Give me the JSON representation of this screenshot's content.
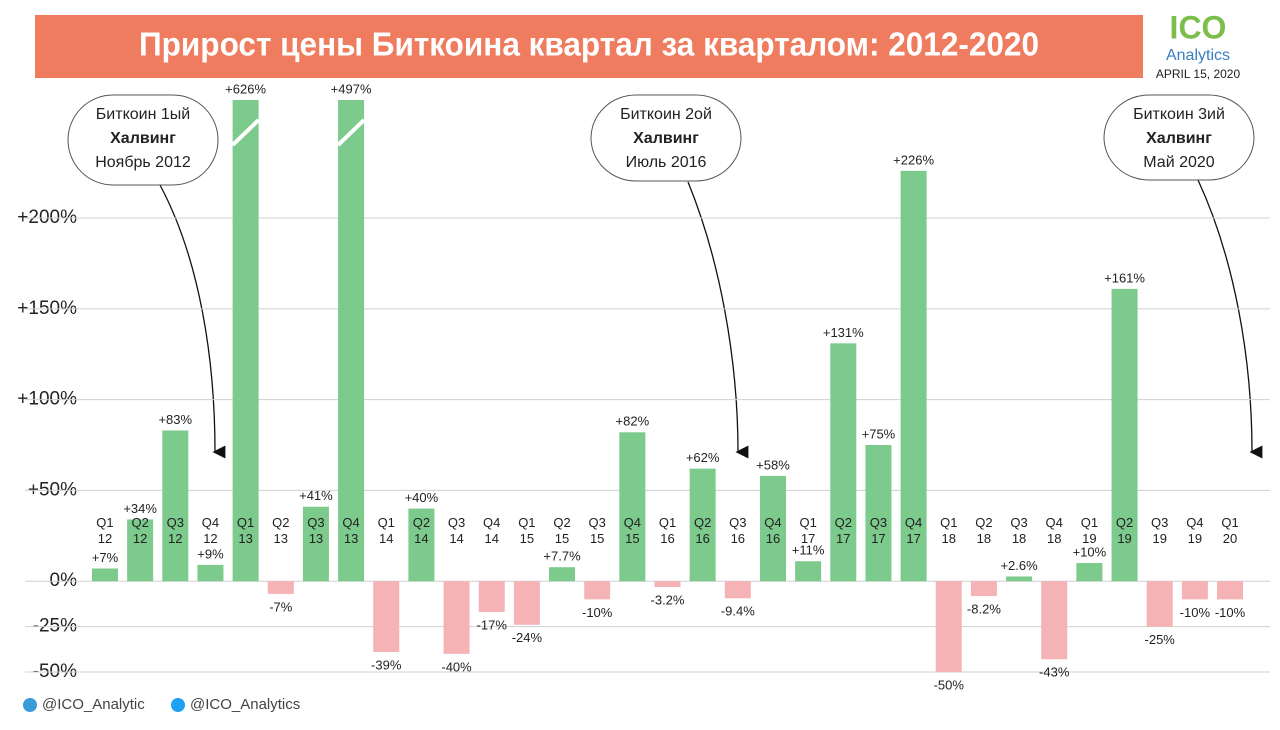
{
  "chart_data": {
    "type": "bar",
    "title": "Прирост цены Биткоина квартал за кварталом: 2012-2020",
    "logo": {
      "top": "ICO",
      "bottom": "Analytics"
    },
    "date": "APRIL 15, 2020",
    "categories": [
      "Q1 12",
      "Q2 12",
      "Q3 12",
      "Q4 12",
      "Q1 13",
      "Q2 13",
      "Q3 13",
      "Q4 13",
      "Q1 14",
      "Q2 14",
      "Q3 14",
      "Q4 14",
      "Q1 15",
      "Q2 15",
      "Q3 15",
      "Q4 15",
      "Q1 16",
      "Q2 16",
      "Q3 16",
      "Q4 16",
      "Q1 17",
      "Q2 17",
      "Q3 17",
      "Q4 17",
      "Q1 18",
      "Q2 18",
      "Q3 18",
      "Q4 18",
      "Q1 19",
      "Q2 19",
      "Q3 19",
      "Q4 19",
      "Q1 20"
    ],
    "values": [
      7,
      34,
      83,
      9,
      626,
      -7,
      41,
      497,
      -39,
      40,
      -40,
      -17,
      -24,
      7.7,
      -10,
      82,
      -3.2,
      62,
      -9.4,
      58,
      11,
      131,
      75,
      226,
      -50,
      -8.2,
      2.6,
      -43,
      10,
      161,
      -25,
      -10,
      -10
    ],
    "value_labels": [
      "+7%",
      "+34%",
      "+83%",
      "+9%",
      "+626%",
      "-7%",
      "+41%",
      "+497%",
      "-39%",
      "+40%",
      "-40%",
      "-17%",
      "-24%",
      "+7.7%",
      "-10%",
      "+82%",
      "-3.2%",
      "+62%",
      "-9.4%",
      "+58%",
      "+11%",
      "+131%",
      "+75%",
      "+226%",
      "-50%",
      "-8.2%",
      "+2.6%",
      "-43%",
      "+10%",
      "+161%",
      "-25%",
      "-10%",
      "-10%"
    ],
    "color": "#7cca8c",
    "negative_color": "#f6b3b6",
    "ylim": [
      -50,
      265
    ],
    "yticks": [
      {
        "value": -50,
        "label": "-50%"
      },
      {
        "value": -25,
        "label": "-25%"
      },
      {
        "value": 0,
        "label": "0%"
      },
      {
        "value": 50,
        "label": "+50%"
      },
      {
        "value": 100,
        "label": "+100%"
      },
      {
        "value": 150,
        "label": "+150%"
      },
      {
        "value": 200,
        "label": "+200%"
      }
    ],
    "grid": true,
    "annotations": [
      {
        "lines": [
          "Биткоин 1ый",
          "Халвинг",
          "Ноябрь 2012"
        ]
      },
      {
        "lines": [
          "Биткоин 2ой",
          "Халвинг",
          "Июль 2016"
        ]
      },
      {
        "lines": [
          "Биткоин 3ий",
          "Халвинг",
          "Май 2020"
        ]
      }
    ],
    "footer": [
      "@ICO_Analytic",
      "@ICO_Analytics"
    ]
  }
}
